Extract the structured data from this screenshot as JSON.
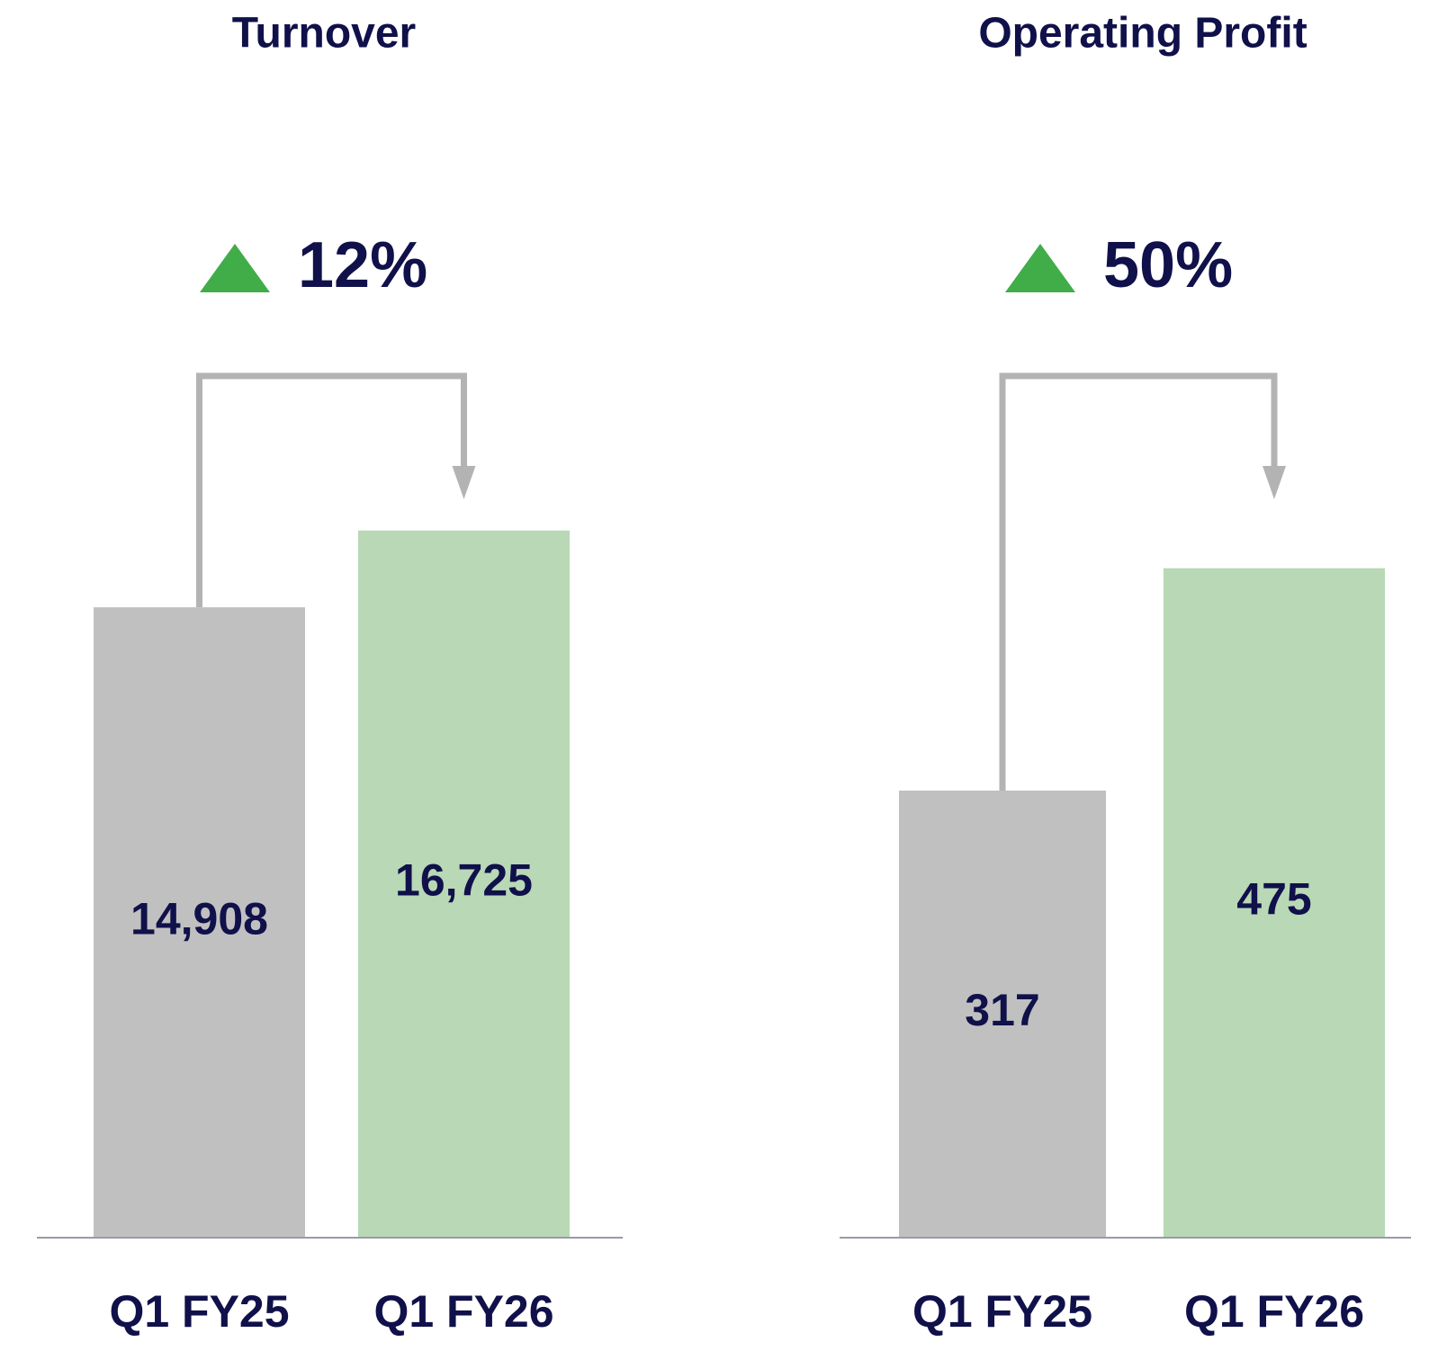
{
  "chart_data": [
    {
      "type": "bar",
      "title": "Turnover",
      "annotation": "12%",
      "categories": [
        "Q1 FY25",
        "Q1 FY26"
      ],
      "values": [
        14908,
        16725
      ],
      "value_labels": [
        "14,908",
        "16,725"
      ],
      "colors": [
        "#c0c0c0",
        "#b8d8b6"
      ],
      "ylim": [
        0,
        18000
      ]
    },
    {
      "type": "bar",
      "title": "Operating Profit",
      "annotation": "50%",
      "categories": [
        "Q1 FY25",
        "Q1 FY26"
      ],
      "values": [
        317,
        475
      ],
      "value_labels": [
        "317",
        "475"
      ],
      "colors": [
        "#c0c0c0",
        "#b8d8b6"
      ],
      "ylim": [
        0,
        540
      ]
    }
  ]
}
